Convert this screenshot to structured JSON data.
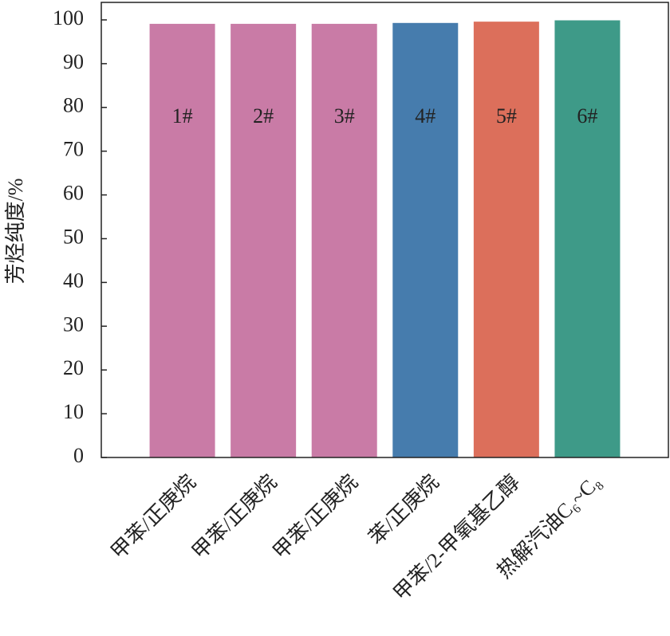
{
  "chart_data": {
    "type": "bar",
    "y_label": "芳烃纯度/%",
    "categories": [
      "甲苯/正庚烷",
      "甲苯/正庚烷",
      "甲苯/正庚烷",
      "苯/正庚烷",
      "甲苯/2-甲氧基乙醇",
      "热解汽油C₆~C₈"
    ],
    "values": [
      99.1,
      99.1,
      99.1,
      99.3,
      99.6,
      99.9
    ],
    "bar_labels": [
      "1#",
      "2#",
      "3#",
      "4#",
      "5#",
      "6#"
    ],
    "colors": [
      "#c97ba6",
      "#c97ba6",
      "#c97ba6",
      "#467cad",
      "#dc6f5b",
      "#3e9a88"
    ],
    "ylim": [
      0,
      104
    ],
    "yticks": [
      0,
      10,
      20,
      30,
      40,
      50,
      60,
      70,
      80,
      90,
      100
    ]
  }
}
